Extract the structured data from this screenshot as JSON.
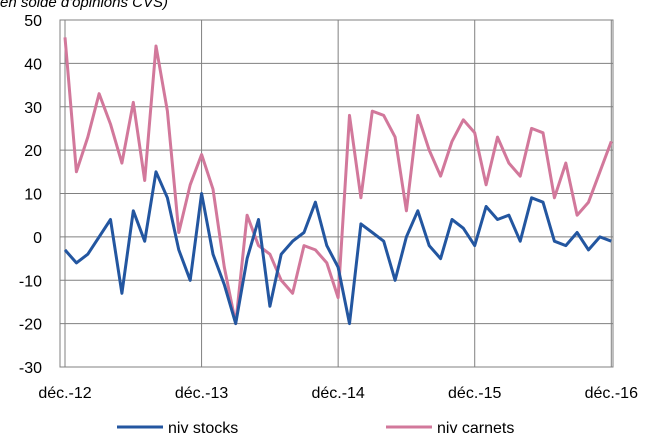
{
  "chart_data": {
    "type": "line",
    "subtitle": "en solde d'opinions CVS)",
    "x_tick_labels": [
      "déc.-12",
      "déc.-13",
      "déc.-14",
      "déc.-15",
      "déc.-16"
    ],
    "x_ticks_index": [
      0,
      12,
      24,
      36,
      48
    ],
    "y_ticks": [
      -30,
      -20,
      -10,
      0,
      10,
      20,
      30,
      40,
      50
    ],
    "ylim": [
      -30,
      50
    ],
    "grid": true,
    "legend_position": "bottom",
    "series": [
      {
        "name": "niv stocks",
        "color": "#2356a0",
        "values": [
          -3,
          -6,
          -4,
          0,
          4,
          -13,
          6,
          -1,
          15,
          9,
          -3,
          -10,
          10,
          -4,
          -11,
          -20,
          -5,
          4,
          -16,
          -4,
          -1,
          1,
          8,
          -2,
          -7,
          -20,
          3,
          1,
          -1,
          -10,
          0,
          6,
          -2,
          -5,
          4,
          2,
          -2,
          7,
          4,
          5,
          -1,
          9,
          8,
          -1,
          -2,
          1,
          -3,
          0,
          -1
        ]
      },
      {
        "name": "niv carnets",
        "color": "#d2789b",
        "values": [
          46,
          15,
          23,
          33,
          26,
          17,
          31,
          13,
          44,
          29,
          1,
          12,
          19,
          11,
          -7,
          -20,
          5,
          -2,
          -4,
          -10,
          -13,
          -2,
          -3,
          -6,
          -14,
          28,
          9,
          29,
          28,
          23,
          6,
          28,
          20,
          14,
          22,
          27,
          24,
          12,
          23,
          17,
          14,
          25,
          24,
          9,
          17,
          5,
          8,
          15,
          22
        ]
      }
    ]
  }
}
